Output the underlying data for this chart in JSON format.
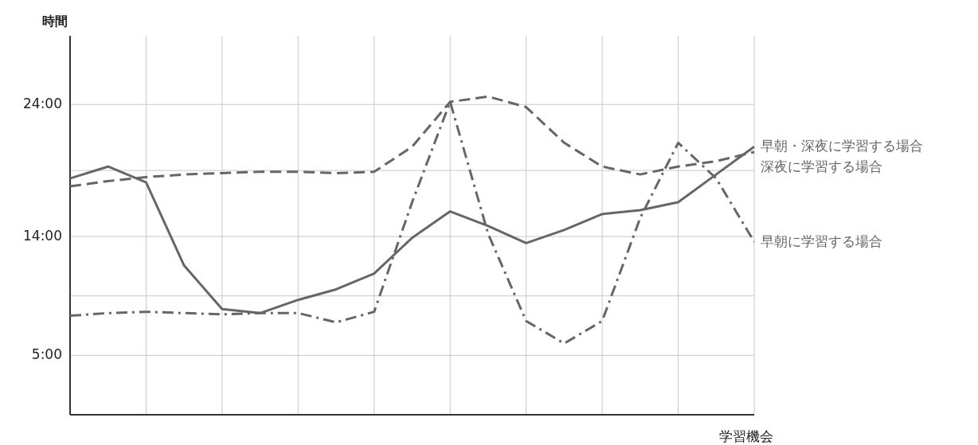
{
  "chart_data": {
    "type": "line",
    "ylabel": "時間",
    "xlabel": "学習機会",
    "categories": [
      null,
      null,
      null,
      null,
      null,
      null,
      null,
      null,
      null,
      null,
      null,
      null,
      null,
      null,
      null,
      null,
      null,
      null,
      null
    ],
    "ylim": [
      0.5,
      29.2
    ],
    "yticks": [
      {
        "value": 5,
        "label": "5:00"
      },
      {
        "value": 9.5,
        "label": null
      },
      {
        "value": 14,
        "label": "14:00"
      },
      {
        "value": 19,
        "label": null
      },
      {
        "value": 24,
        "label": "24:00"
      }
    ],
    "grid": true,
    "series": [
      {
        "name": "早朝・深夜に学習する場合",
        "color": "#666666",
        "line_style": "solid",
        "values": [
          18.4,
          19.3,
          18.1,
          11.8,
          8.5,
          8.2,
          9.2,
          10.0,
          11.2,
          13.9,
          15.9,
          14.8,
          13.5,
          14.5,
          15.7,
          16.0,
          16.6,
          18.7,
          20.8
        ]
      },
      {
        "name": "深夜に学習する場合",
        "color": "#666666",
        "line_style": "dashed",
        "values": [
          17.8,
          18.2,
          18.5,
          18.7,
          18.8,
          18.9,
          18.9,
          18.8,
          18.9,
          20.8,
          24.2,
          24.6,
          23.8,
          21.1,
          19.3,
          18.7,
          19.3,
          19.7,
          20.4
        ]
      },
      {
        "name": "早朝に学習する場合",
        "color": "#666666",
        "line_style": "dashdot",
        "values": [
          8.0,
          8.2,
          8.3,
          8.2,
          8.1,
          8.2,
          8.2,
          7.5,
          8.3,
          16.6,
          24.2,
          14.2,
          7.6,
          5.9,
          7.6,
          15.4,
          21.1,
          18.4,
          13.6
        ]
      }
    ]
  }
}
